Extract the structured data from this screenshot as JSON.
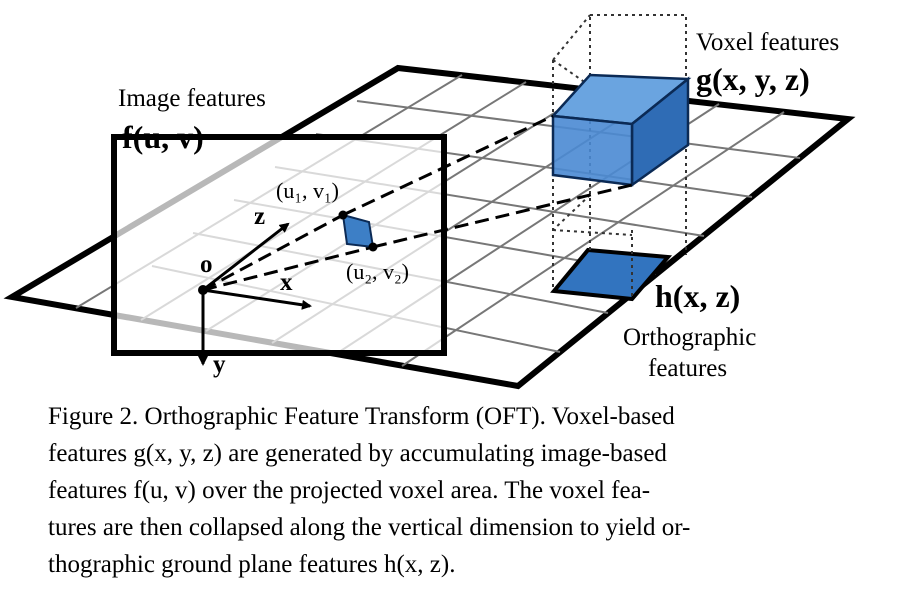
{
  "figure": {
    "labels": {
      "image_features": "Image features",
      "image_func": "f(u, v)",
      "voxel_features": "Voxel features",
      "voxel_func": "g(x, y, z)",
      "ortho_func": "h(x, z)",
      "ortho_features_1": "Orthographic",
      "ortho_features_2": "features",
      "origin": "o",
      "axis_x": "x",
      "axis_y": "y",
      "axis_z": "z",
      "point_1": "(u₁, v₁)",
      "point_2": "(u₂, v₂)"
    },
    "colors": {
      "voxel_blue": "#3d7fc6",
      "voxel_dark": "#1f4f8a",
      "grid": "#000000"
    }
  },
  "caption": {
    "lines": [
      "Figure 2. Orthographic Feature Transform (OFT). Voxel-based",
      "features g(x, y, z) are generated by accumulating image-based",
      "features f(u, v) over the projected voxel area. The voxel fea-",
      "tures are then collapsed along the vertical dimension to yield or-",
      "thographic ground plane features h(x, z)."
    ]
  }
}
